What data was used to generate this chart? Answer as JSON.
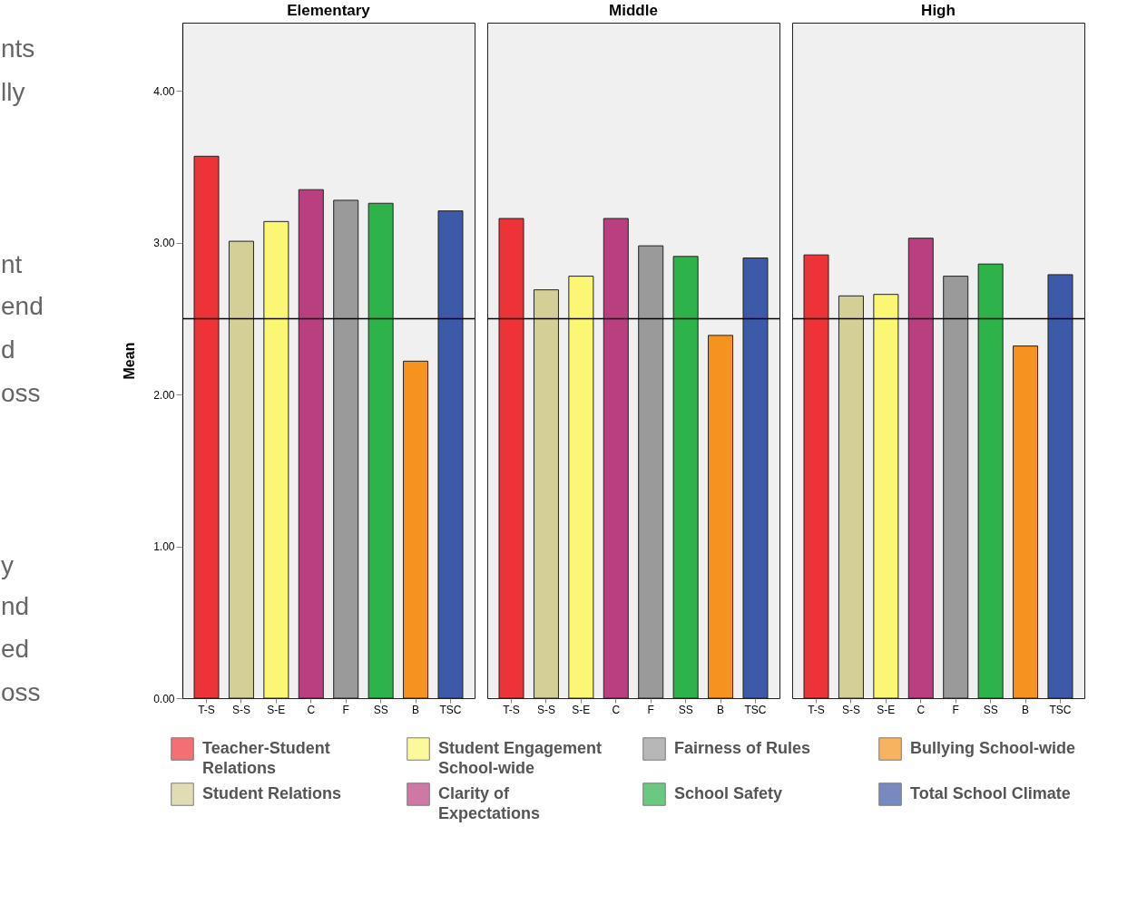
{
  "chart_data": [
    {
      "type": "bar",
      "title": "Elementary",
      "ylabel": "Mean",
      "categories": [
        "T-S",
        "S-S",
        "S-E",
        "C",
        "F",
        "SS",
        "B",
        "TSC"
      ],
      "ylim": [
        0,
        4.45
      ],
      "yticks": [
        {
          "value": 0,
          "label": "0.00"
        },
        {
          "value": 1,
          "label": "1.00"
        },
        {
          "value": 2,
          "label": "2.00"
        },
        {
          "value": 3,
          "label": "3.00"
        },
        {
          "value": 4,
          "label": "4.00"
        }
      ],
      "grid": false,
      "legend": "bottom",
      "ref_lines": [
        {
          "axis": "y",
          "value": 2.5,
          "color": "#000000"
        }
      ],
      "annotations": [
        "nts",
        "lly",
        "nt",
        "end",
        "d",
        "oss",
        "y",
        "nd",
        "ed",
        "oss"
      ],
      "series": [
        {
          "name": "Teacher-Student Relations",
          "color": "#ee3338",
          "values": [
            3.57,
            null,
            null,
            null,
            null,
            null,
            null,
            null
          ]
        },
        {
          "name": "Student Relations",
          "color": "#d4cf97",
          "values": [
            null,
            3.01,
            null,
            null,
            null,
            null,
            null,
            null
          ]
        },
        {
          "name": "Student Engagement School-wide",
          "color": "#fbf774",
          "values": [
            null,
            null,
            3.14,
            null,
            null,
            null,
            null,
            null
          ]
        },
        {
          "name": "Clarity of Expectations",
          "color": "#b93f80",
          "values": [
            null,
            null,
            null,
            3.35,
            null,
            null,
            null,
            null
          ]
        },
        {
          "name": "Fairness of Rules",
          "color": "#9a9a9a",
          "values": [
            null,
            null,
            null,
            null,
            3.28,
            null,
            null,
            null
          ]
        },
        {
          "name": "School Safety",
          "color": "#2db34a",
          "values": [
            null,
            null,
            null,
            null,
            null,
            3.26,
            null,
            null
          ]
        },
        {
          "name": "Bullying School-wide",
          "color": "#f6931e",
          "values": [
            null,
            null,
            null,
            null,
            null,
            null,
            2.22,
            null
          ]
        },
        {
          "name": "Total School Climate",
          "color": "#3d5aa8",
          "values": [
            null,
            null,
            null,
            null,
            null,
            null,
            null,
            3.21
          ]
        }
      ]
    },
    {
      "type": "bar",
      "title": "Middle",
      "categories": [
        "T-S",
        "S-S",
        "S-E",
        "C",
        "F",
        "SS",
        "B",
        "TSC"
      ],
      "ylim": [
        0,
        4.45
      ],
      "tick_labels": "x",
      "grid": false,
      "ref_lines": [
        {
          "axis": "y",
          "value": 2.5,
          "color": "#000000"
        }
      ],
      "series": [
        {
          "color": "#ee3338",
          "values": [
            3.16,
            null,
            null,
            null,
            null,
            null,
            null,
            null
          ]
        },
        {
          "color": "#d4cf97",
          "values": [
            null,
            2.69,
            null,
            null,
            null,
            null,
            null,
            null
          ]
        },
        {
          "color": "#fbf774",
          "values": [
            null,
            null,
            2.78,
            null,
            null,
            null,
            null,
            null
          ]
        },
        {
          "color": "#b93f80",
          "values": [
            null,
            null,
            null,
            3.16,
            null,
            null,
            null,
            null
          ]
        },
        {
          "color": "#9a9a9a",
          "values": [
            null,
            null,
            null,
            null,
            2.98,
            null,
            null,
            null
          ]
        },
        {
          "color": "#2db34a",
          "values": [
            null,
            null,
            null,
            null,
            null,
            2.91,
            null,
            null
          ]
        },
        {
          "color": "#f6931e",
          "values": [
            null,
            null,
            null,
            null,
            null,
            null,
            2.39,
            null
          ]
        },
        {
          "color": "#3d5aa8",
          "values": [
            null,
            null,
            null,
            null,
            null,
            null,
            null,
            2.9
          ]
        }
      ]
    },
    {
      "type": "bar",
      "title": "High",
      "categories": [
        "T-S",
        "S-S",
        "S-E",
        "C",
        "F",
        "SS",
        "B",
        "TSC"
      ],
      "ylim": [
        0,
        4.45
      ],
      "tick_labels": "x",
      "grid": false,
      "ref_lines": [
        {
          "axis": "y",
          "value": 2.5,
          "color": "#000000"
        }
      ],
      "series": [
        {
          "color": "#ee3338",
          "values": [
            2.92,
            null,
            null,
            null,
            null,
            null,
            null,
            null
          ]
        },
        {
          "color": "#d4cf97",
          "values": [
            null,
            2.65,
            null,
            null,
            null,
            null,
            null,
            null
          ]
        },
        {
          "color": "#fbf774",
          "values": [
            null,
            null,
            2.66,
            null,
            null,
            null,
            null,
            null
          ]
        },
        {
          "color": "#b93f80",
          "values": [
            null,
            null,
            null,
            3.03,
            null,
            null,
            null,
            null
          ]
        },
        {
          "color": "#9a9a9a",
          "values": [
            null,
            null,
            null,
            null,
            2.78,
            null,
            null,
            null
          ]
        },
        {
          "color": "#2db34a",
          "values": [
            null,
            null,
            null,
            null,
            null,
            2.86,
            null,
            null
          ]
        },
        {
          "color": "#f6931e",
          "values": [
            null,
            null,
            null,
            null,
            null,
            null,
            2.32,
            null
          ]
        },
        {
          "color": "#3d5aa8",
          "values": [
            null,
            null,
            null,
            null,
            null,
            null,
            null,
            2.79
          ]
        }
      ]
    }
  ]
}
